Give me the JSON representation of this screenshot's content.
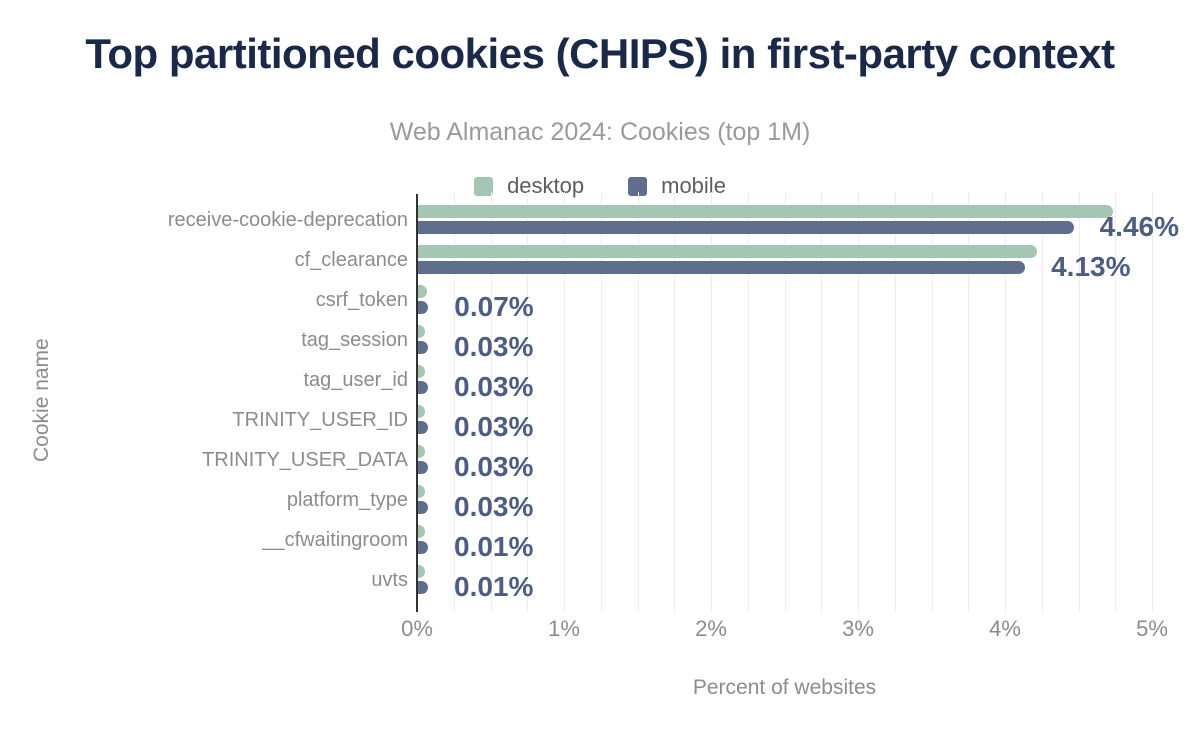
{
  "header": {
    "title": "Top partitioned cookies (CHIPS) in first-party context",
    "subtitle": "Web Almanac 2024: Cookies (top 1M)"
  },
  "legend": {
    "items": [
      {
        "label": "desktop",
        "color": "#a4c6b2"
      },
      {
        "label": "mobile",
        "color": "#5f6e8c"
      }
    ]
  },
  "axes": {
    "x_label": "Percent of websites",
    "y_label": "Cookie name",
    "x_ticks": [
      "0%",
      "1%",
      "2%",
      "3%",
      "4%",
      "5%"
    ]
  },
  "chart_data": {
    "type": "bar",
    "orientation": "horizontal",
    "title": "Top partitioned cookies (CHIPS) in first-party context",
    "subtitle": "Web Almanac 2024: Cookies (top 1M)",
    "xlabel": "Percent of websites",
    "ylabel": "Cookie name",
    "xlim": [
      0,
      5
    ],
    "x_tick_step_pct": 1,
    "minor_grid_step_pct": 0.25,
    "grid": "vertical minor gridlines on",
    "legend_position": "top center",
    "categories": [
      "receive-cookie-deprecation",
      "cf_clearance",
      "csrf_token",
      "tag_session",
      "tag_user_id",
      "TRINITY_USER_ID",
      "TRINITY_USER_DATA",
      "platform_type",
      "__cfwaitingroom",
      "uvts"
    ],
    "series": [
      {
        "name": "desktop",
        "color": "#a4c6b2",
        "estimated_from_pixels": true,
        "values": [
          4.73,
          4.21,
          0.06,
          0.02,
          0.02,
          0.02,
          0.02,
          0.03,
          0.01,
          0.01
        ]
      },
      {
        "name": "mobile",
        "color": "#5f6e8c",
        "values": [
          4.46,
          4.13,
          0.07,
          0.03,
          0.03,
          0.03,
          0.03,
          0.03,
          0.01,
          0.01
        ]
      }
    ],
    "value_labels": [
      "4.46%",
      "4.13%",
      "0.07%",
      "0.03%",
      "0.03%",
      "0.03%",
      "0.03%",
      "0.03%",
      "0.01%",
      "0.01%"
    ],
    "value_label_series": "mobile"
  },
  "colors": {
    "background": "#ffffff",
    "title": "#1a2947",
    "subtitle": "#9a9a9a",
    "axis_text": "#8c8c8c",
    "legend_text": "#5e5e5e",
    "value_label": "#4d5e82",
    "axis_line": "#333333",
    "gridline": "#ededed",
    "desktop_bar": "#a4c6b2",
    "mobile_bar": "#5f6e8c"
  }
}
